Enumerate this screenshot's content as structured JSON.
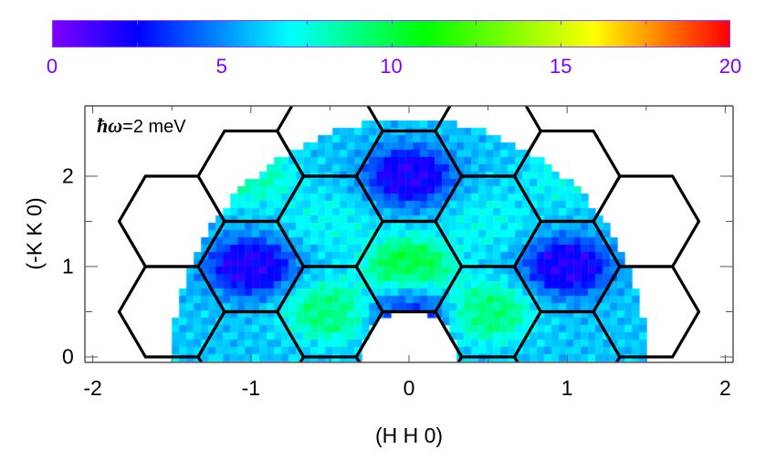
{
  "chart_data": {
    "type": "heatmap",
    "title": "",
    "annotation": "ħω=2 meV",
    "annotation_parts": {
      "symbol": "ħω",
      "text": "=2 meV"
    },
    "xlabel": "(H H 0)",
    "ylabel": "(-K K 0)",
    "xlim": [
      -2.05,
      2.05
    ],
    "ylim": [
      -0.06,
      2.78
    ],
    "x_ticks": [
      -2,
      -1,
      0,
      1,
      2
    ],
    "x_tick_labels": [
      "-2",
      "-1",
      "0",
      "1",
      "2"
    ],
    "x_minor_ticks": [
      -1.5,
      -0.5,
      0.5,
      1.5
    ],
    "y_ticks": [
      0,
      1,
      2
    ],
    "y_tick_labels": [
      "0",
      "1",
      "2"
    ],
    "y_minor_ticks": [
      0.5,
      1.5
    ],
    "grid": false,
    "colorbar": {
      "position": "top",
      "range": [
        0,
        20
      ],
      "ticks": [
        0,
        5,
        10,
        15,
        20
      ],
      "tick_labels": [
        "0",
        "5",
        "10",
        "15",
        "20"
      ],
      "minor_ticks": [
        2.5,
        7.5,
        12.5,
        17.5
      ],
      "colormap": [
        "#8000ff",
        "#0000ff",
        "#00ffff",
        "#00ff00",
        "#ffff00",
        "#ff0000"
      ],
      "colormap_stops": [
        0,
        2.5,
        7,
        11,
        16,
        20
      ],
      "label_color": "#8000ff"
    },
    "data_region": {
      "description": "Measured intensity on an annular half-disk: outer radius ~1.5 (H units), inner hole radius ~0.3 around origin, K >= 0, |H| <= 1.5",
      "h_range": [
        -1.5,
        1.5
      ],
      "k_range": [
        0,
        2.6
      ]
    },
    "intensity_features": [
      {
        "H": -1,
        "K": 1,
        "value": 2,
        "note": "minimum (blue/violet)"
      },
      {
        "H": 1,
        "K": 1,
        "value": 2,
        "note": "minimum (blue/violet)"
      },
      {
        "H": 0,
        "K": 2,
        "value": 2,
        "note": "minimum (blue/violet)"
      },
      {
        "H": 0,
        "K": 1,
        "value": 10,
        "note": "maximum ring (green)"
      },
      {
        "H": -0.5,
        "K": 0.5,
        "value": 9,
        "note": "green band"
      },
      {
        "H": 0.5,
        "K": 0.5,
        "value": 9,
        "note": "green band"
      },
      {
        "H": -0.5,
        "K": 1.5,
        "value": 7,
        "note": "cyan"
      },
      {
        "H": 0.5,
        "K": 1.5,
        "value": 7,
        "note": "cyan"
      },
      {
        "H": -1,
        "K": 2,
        "value": 8,
        "note": "cyan-green edge"
      },
      {
        "H": 1,
        "K": 2,
        "value": 7,
        "note": "cyan edge"
      },
      {
        "H": 0,
        "K": 0.5,
        "value": 3,
        "note": "blue near inner hole"
      }
    ],
    "overlay": {
      "type": "hexagonal Brillouin zone boundaries",
      "hex_half_width_H": 0.333,
      "hex_half_height_K": 0.5,
      "centers": [
        [
          -1.5,
          0.5
        ],
        [
          -1.5,
          1.5
        ],
        [
          -1,
          0
        ],
        [
          -1,
          1
        ],
        [
          -1,
          2
        ],
        [
          -0.5,
          0.5
        ],
        [
          -0.5,
          1.5
        ],
        [
          -0.5,
          2.5
        ],
        [
          0,
          0
        ],
        [
          0,
          1
        ],
        [
          0,
          2
        ],
        [
          0.5,
          0.5
        ],
        [
          0.5,
          1.5
        ],
        [
          0.5,
          2.5
        ],
        [
          1,
          0
        ],
        [
          1,
          1
        ],
        [
          1,
          2
        ],
        [
          1.5,
          0.5
        ],
        [
          1.5,
          1.5
        ]
      ],
      "line_color": "#000000"
    }
  }
}
